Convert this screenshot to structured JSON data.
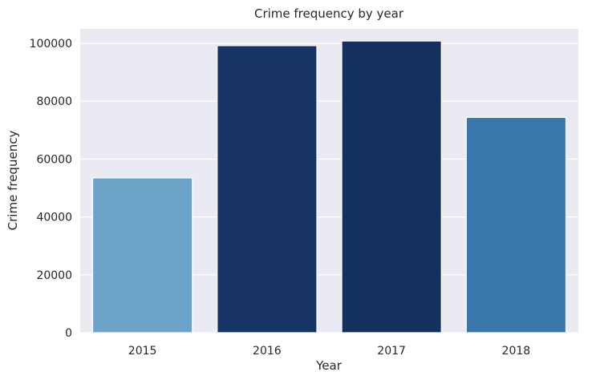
{
  "chart_data": {
    "type": "bar",
    "title": "Crime frequency by year",
    "xlabel": "Year",
    "ylabel": "Crime frequency",
    "categories": [
      "2015",
      "2016",
      "2017",
      "2018"
    ],
    "values": [
      53500,
      99200,
      100800,
      74400
    ],
    "bar_colors": [
      "#6ba4c8",
      "#163464",
      "#13305e",
      "#3976a9"
    ],
    "ylim": [
      0,
      105000
    ],
    "yticks": [
      0,
      20000,
      40000,
      60000,
      80000,
      100000
    ],
    "grid": true,
    "background": "#eaeaf2"
  }
}
